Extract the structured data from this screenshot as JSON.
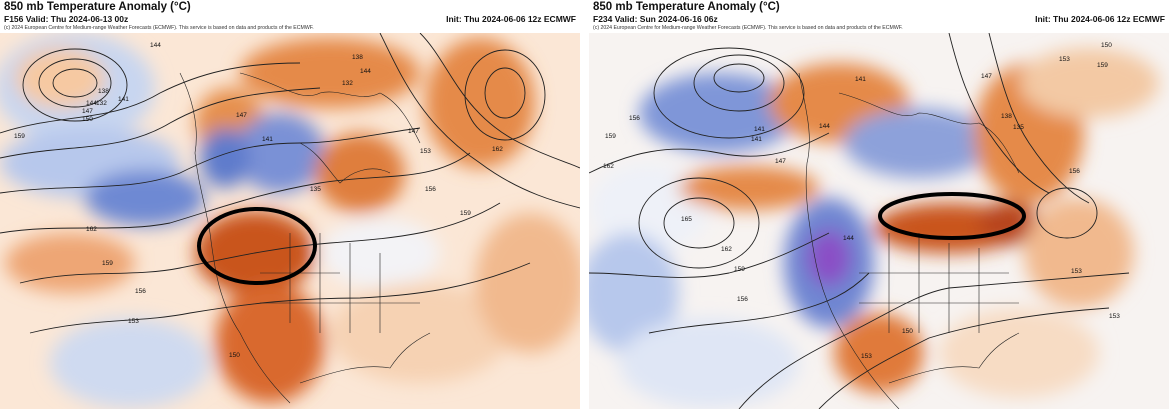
{
  "panels": [
    {
      "title": "850 mb Temperature Anomaly (°C)",
      "valid": "F156 Valid: Thu 2024-06-13 00z",
      "init": "Init: Thu 2024-06-06 12z ECMWF",
      "credit": "(c) 2024 European Centre for Medium-range Weather Forecasts (ECMWF). This service is based on data and products of the ECMWF.",
      "highlight": "western United States",
      "contour_labels": [
        "144",
        "138",
        "132",
        "144",
        "141",
        "147",
        "150",
        "159",
        "162",
        "159",
        "156",
        "153",
        "150",
        "147",
        "141",
        "138",
        "144",
        "147",
        "153",
        "156",
        "159",
        "162",
        "135",
        "132"
      ]
    },
    {
      "title": "850 mb Temperature Anomaly (°C)",
      "valid": "F234 Valid: Sun 2024-06-16 06z",
      "init": "Init: Thu 2024-06-06 12z ECMWF",
      "credit": "(c) 2024 European Centre for Medium-range Weather Forecasts (ECMWF). This service is based on data and products of the ECMWF.",
      "highlight": "northeastern United States / southern Canada",
      "contour_labels": [
        "150",
        "153",
        "156",
        "159",
        "162",
        "165",
        "162",
        "159",
        "156",
        "141",
        "144",
        "147",
        "141",
        "138",
        "135",
        "144",
        "150",
        "153",
        "156",
        "153",
        "159",
        "153",
        "147",
        "141"
      ]
    }
  ],
  "colors": {
    "warm": "#d9632a",
    "warm_light": "#f1b98e",
    "cool": "#4f6ec8",
    "cool_light": "#b4c6ea",
    "cold_core": "#7e3fc0",
    "circle": "#000000"
  }
}
